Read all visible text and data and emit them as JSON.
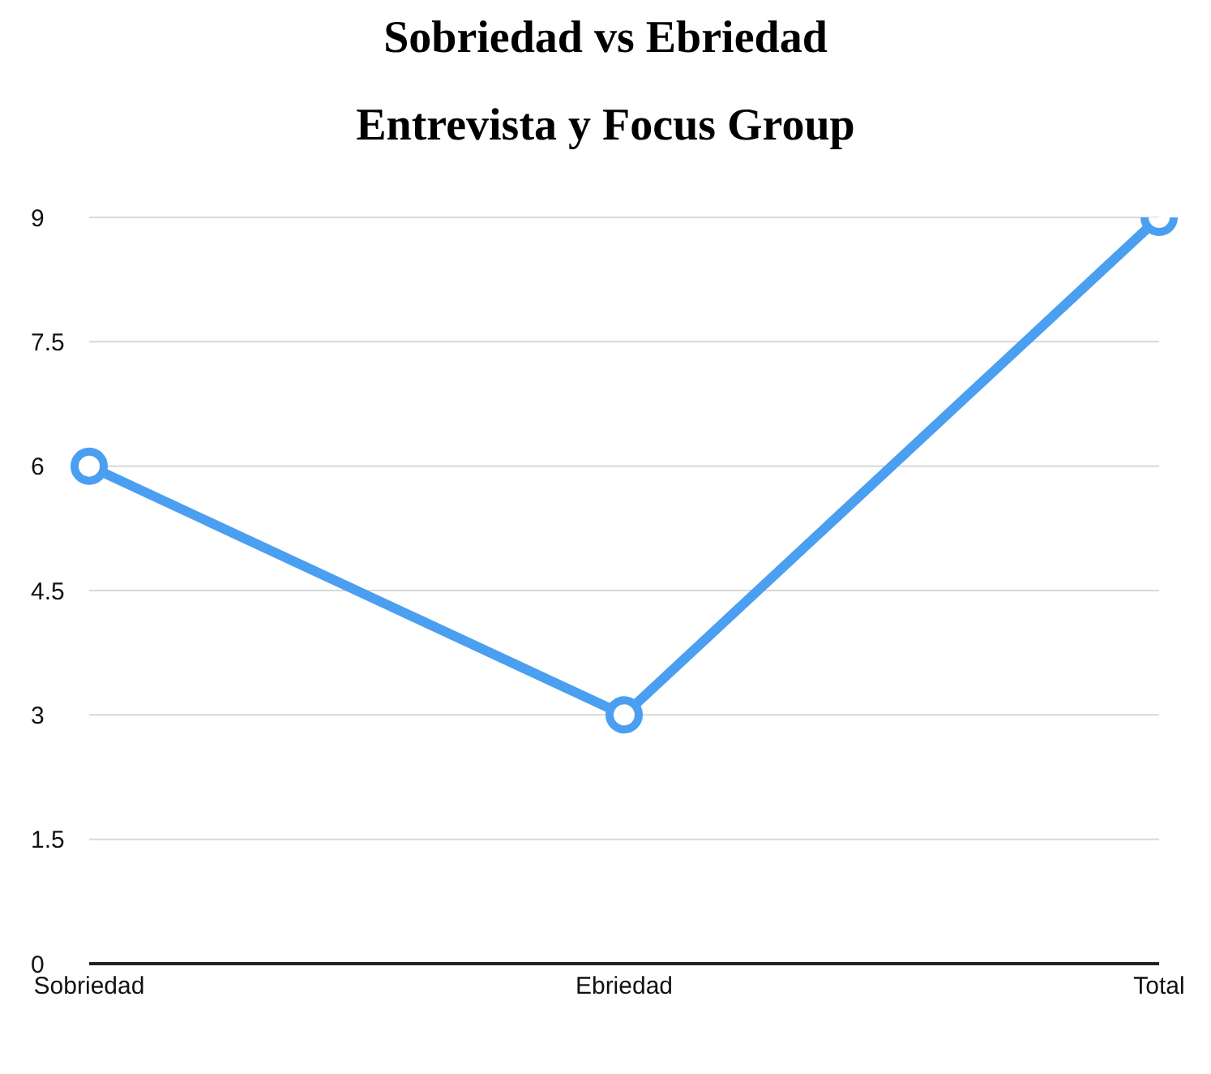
{
  "chart_data": {
    "type": "line",
    "title": "Sobriedad vs Ebriedad",
    "subtitle": "Entrevista y Focus Group",
    "categories": [
      "Sobriedad",
      "Ebriedad",
      "Total"
    ],
    "series": [
      {
        "color": "#4a9ff0",
        "values": [
          6,
          3,
          9
        ]
      }
    ],
    "ylim": [
      0,
      9
    ],
    "yticks": [
      0,
      1.5,
      3,
      4.5,
      6,
      7.5,
      9
    ],
    "grid": "y",
    "marker": "circle",
    "line_style": "solid",
    "legend": false
  }
}
